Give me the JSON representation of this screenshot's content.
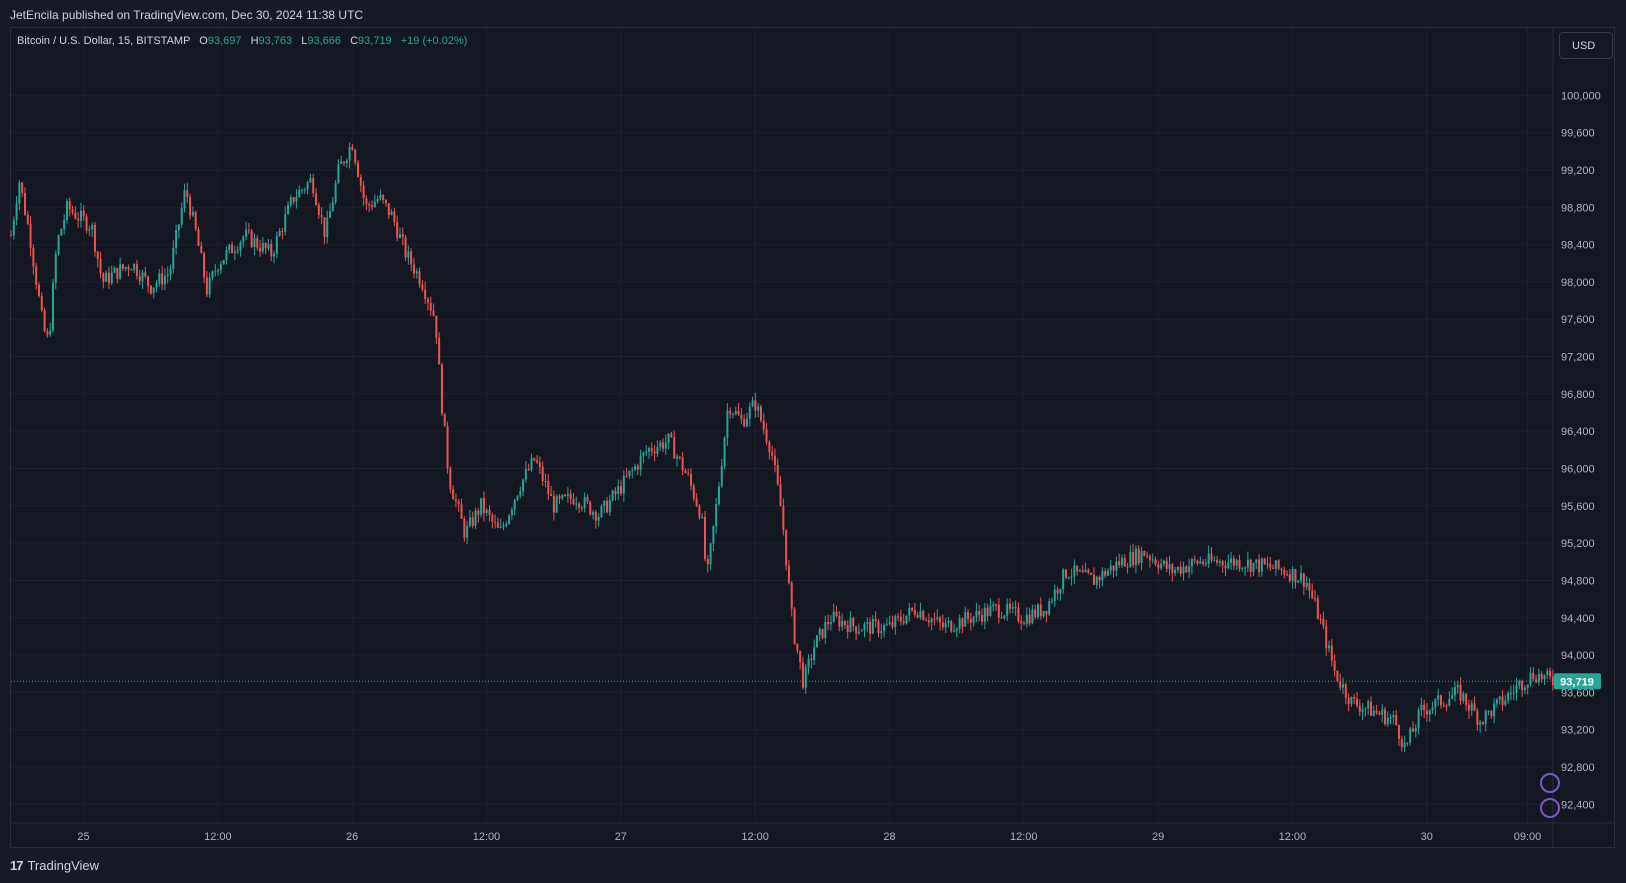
{
  "publisher_line": "JetEncila published on TradingView.com, Dec 30, 2024 11:38 UTC",
  "legend": {
    "symbol": "Bitcoin / U.S. Dollar, 15, BITSTAMP",
    "o_label": "O",
    "o_value": "93,697",
    "h_label": "H",
    "h_value": "93,763",
    "l_label": "L",
    "l_value": "93,666",
    "c_label": "C",
    "c_value": "93,719",
    "change": "+19 (+0.02%)"
  },
  "currency_button": "USD",
  "footer": {
    "logo_mark": "17",
    "logo_text": "TradingView"
  },
  "colors": {
    "up": "#26a69a",
    "down": "#ef5350",
    "background": "#131722",
    "grid": "#1e222d",
    "last_price": "#26a69a"
  },
  "chart_data": {
    "type": "candlestick",
    "symbol": "BTCUSD",
    "interval": "15",
    "exchange": "BITSTAMP",
    "y_range": [
      92200,
      100400
    ],
    "y_ticks": [
      "100,000",
      "99,600",
      "99,200",
      "98,800",
      "98,400",
      "98,000",
      "97,600",
      "97,200",
      "96,800",
      "96,400",
      "96,000",
      "95,600",
      "95,200",
      "94,800",
      "94,400",
      "94,000",
      "93,600",
      "93,200",
      "92,800",
      "92,400"
    ],
    "y_tick_values": [
      100000,
      99600,
      99200,
      98800,
      98400,
      98000,
      97600,
      97200,
      96800,
      96400,
      96000,
      95600,
      95200,
      94800,
      94400,
      94000,
      93600,
      93200,
      92800,
      92400
    ],
    "x_ticks": [
      {
        "label": "25",
        "day": 0.0
      },
      {
        "label": "12:00",
        "day": 0.5
      },
      {
        "label": "26",
        "day": 1.0
      },
      {
        "label": "12:00",
        "day": 1.5
      },
      {
        "label": "27",
        "day": 2.0
      },
      {
        "label": "12:00",
        "day": 2.5
      },
      {
        "label": "28",
        "day": 3.0
      },
      {
        "label": "12:00",
        "day": 3.5
      },
      {
        "label": "29",
        "day": 4.0
      },
      {
        "label": "12:00",
        "day": 4.5
      },
      {
        "label": "30",
        "day": 5.0
      },
      {
        "label": "09:00",
        "day": 5.375
      }
    ],
    "x_domain_days": [
      -0.27,
      5.47
    ],
    "last_price": 93719,
    "last_price_label": "93,719",
    "price_path": [
      {
        "day": -0.27,
        "price": 98500
      },
      {
        "day": -0.24,
        "price": 99100
      },
      {
        "day": -0.2,
        "price": 98500
      },
      {
        "day": -0.15,
        "price": 97500
      },
      {
        "day": -0.13,
        "price": 97350
      },
      {
        "day": -0.1,
        "price": 98400
      },
      {
        "day": -0.06,
        "price": 98800
      },
      {
        "day": -0.02,
        "price": 98700
      },
      {
        "day": 0.03,
        "price": 98600
      },
      {
        "day": 0.07,
        "price": 98000
      },
      {
        "day": 0.12,
        "price": 98100
      },
      {
        "day": 0.18,
        "price": 98200
      },
      {
        "day": 0.25,
        "price": 97950
      },
      {
        "day": 0.32,
        "price": 98100
      },
      {
        "day": 0.38,
        "price": 99000
      },
      {
        "day": 0.42,
        "price": 98500
      },
      {
        "day": 0.46,
        "price": 97900
      },
      {
        "day": 0.5,
        "price": 98200
      },
      {
        "day": 0.6,
        "price": 98500
      },
      {
        "day": 0.7,
        "price": 98300
      },
      {
        "day": 0.78,
        "price": 98900
      },
      {
        "day": 0.85,
        "price": 99100
      },
      {
        "day": 0.9,
        "price": 98500
      },
      {
        "day": 0.95,
        "price": 99200
      },
      {
        "day": 1.0,
        "price": 99500
      },
      {
        "day": 1.05,
        "price": 98800
      },
      {
        "day": 1.1,
        "price": 98900
      },
      {
        "day": 1.15,
        "price": 98700
      },
      {
        "day": 1.2,
        "price": 98300
      },
      {
        "day": 1.26,
        "price": 98000
      },
      {
        "day": 1.31,
        "price": 97600
      },
      {
        "day": 1.33,
        "price": 96800
      },
      {
        "day": 1.36,
        "price": 95900
      },
      {
        "day": 1.42,
        "price": 95300
      },
      {
        "day": 1.48,
        "price": 95600
      },
      {
        "day": 1.55,
        "price": 95300
      },
      {
        "day": 1.62,
        "price": 95800
      },
      {
        "day": 1.68,
        "price": 96100
      },
      {
        "day": 1.75,
        "price": 95600
      },
      {
        "day": 1.83,
        "price": 95700
      },
      {
        "day": 1.92,
        "price": 95500
      },
      {
        "day": 2.0,
        "price": 95800
      },
      {
        "day": 2.1,
        "price": 96200
      },
      {
        "day": 2.18,
        "price": 96300
      },
      {
        "day": 2.25,
        "price": 95900
      },
      {
        "day": 2.3,
        "price": 95500
      },
      {
        "day": 2.32,
        "price": 94800
      },
      {
        "day": 2.36,
        "price": 95700
      },
      {
        "day": 2.4,
        "price": 96700
      },
      {
        "day": 2.45,
        "price": 96500
      },
      {
        "day": 2.5,
        "price": 96700
      },
      {
        "day": 2.56,
        "price": 96200
      },
      {
        "day": 2.6,
        "price": 95500
      },
      {
        "day": 2.64,
        "price": 94300
      },
      {
        "day": 2.68,
        "price": 93700
      },
      {
        "day": 2.72,
        "price": 94100
      },
      {
        "day": 2.78,
        "price": 94400
      },
      {
        "day": 2.88,
        "price": 94300
      },
      {
        "day": 3.0,
        "price": 94300
      },
      {
        "day": 3.1,
        "price": 94500
      },
      {
        "day": 3.2,
        "price": 94300
      },
      {
        "day": 3.3,
        "price": 94400
      },
      {
        "day": 3.4,
        "price": 94500
      },
      {
        "day": 3.5,
        "price": 94400
      },
      {
        "day": 3.58,
        "price": 94500
      },
      {
        "day": 3.66,
        "price": 94900
      },
      {
        "day": 3.76,
        "price": 94800
      },
      {
        "day": 3.86,
        "price": 95000
      },
      {
        "day": 3.95,
        "price": 95100
      },
      {
        "day": 4.05,
        "price": 94900
      },
      {
        "day": 4.15,
        "price": 95000
      },
      {
        "day": 4.3,
        "price": 95000
      },
      {
        "day": 4.4,
        "price": 94950
      },
      {
        "day": 4.48,
        "price": 94900
      },
      {
        "day": 4.55,
        "price": 94800
      },
      {
        "day": 4.6,
        "price": 94400
      },
      {
        "day": 4.66,
        "price": 93800
      },
      {
        "day": 4.72,
        "price": 93500
      },
      {
        "day": 4.8,
        "price": 93400
      },
      {
        "day": 4.88,
        "price": 93300
      },
      {
        "day": 4.92,
        "price": 93000
      },
      {
        "day": 4.98,
        "price": 93400
      },
      {
        "day": 5.05,
        "price": 93500
      },
      {
        "day": 5.12,
        "price": 93600
      },
      {
        "day": 5.2,
        "price": 93300
      },
      {
        "day": 5.28,
        "price": 93500
      },
      {
        "day": 5.35,
        "price": 93700
      },
      {
        "day": 5.4,
        "price": 93800
      },
      {
        "day": 5.47,
        "price": 93719
      }
    ]
  }
}
